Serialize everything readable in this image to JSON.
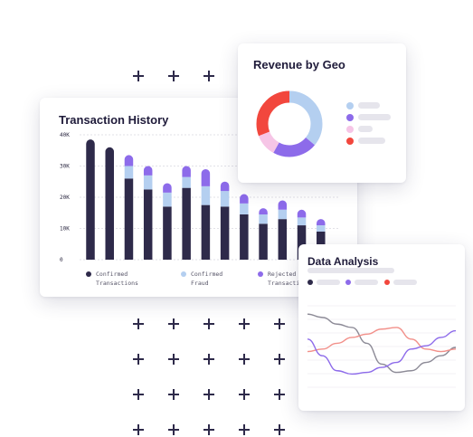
{
  "transaction_history": {
    "title": "Transaction History",
    "legend": [
      {
        "label": "Confirmed\nTransactions",
        "color": "#2e2a4a"
      },
      {
        "label": "Confirmed\nFraud",
        "color": "#b4cff0"
      },
      {
        "label": "Rejected\nTransactions",
        "color": "#8d6bea"
      }
    ],
    "chart_data": {
      "type": "bar",
      "stacked": true,
      "y_ticks": [
        "40K",
        "30K",
        "20K",
        "10K",
        "0"
      ],
      "ylim": [
        0,
        40000
      ],
      "grid": true,
      "series": [
        {
          "name": "Confirmed Transactions",
          "color": "#2e2a4a",
          "values": [
            38500,
            36000,
            26000,
            22500,
            17000,
            23000,
            17500,
            17000,
            14500,
            11500,
            13000,
            11000,
            9000
          ]
        },
        {
          "name": "Confirmed Fraud",
          "color": "#b4cff0",
          "values": [
            0,
            0,
            4000,
            4500,
            4500,
            3500,
            6000,
            5000,
            3500,
            3000,
            3000,
            2500,
            2000
          ]
        },
        {
          "name": "Rejected Transactions",
          "color": "#8d6bea",
          "values": [
            0,
            0,
            3500,
            3000,
            3000,
            3500,
            5500,
            3000,
            3000,
            2000,
            3000,
            2500,
            2000
          ]
        }
      ]
    }
  },
  "revenue_by_geo": {
    "title": "Revenue by Geo",
    "chart_data": {
      "type": "pie",
      "donut": true,
      "slices": [
        {
          "value": 36,
          "color": "#b4cff0"
        },
        {
          "value": 22,
          "color": "#8d6bea"
        },
        {
          "value": 11,
          "color": "#f6c5e6"
        },
        {
          "value": 31,
          "color": "#f2473d"
        }
      ]
    }
  },
  "data_analysis": {
    "title": "Data Analysis",
    "chart_data": {
      "type": "line",
      "grid": true,
      "x": [
        0,
        1,
        2,
        3,
        4,
        5,
        6,
        7,
        8,
        9,
        10
      ],
      "ylim": [
        0,
        100
      ],
      "series": [
        {
          "color": "#8c8a96",
          "values": [
            90,
            86,
            78,
            74,
            55,
            30,
            20,
            22,
            32,
            40,
            50
          ]
        },
        {
          "color": "#f2908a",
          "values": [
            45,
            48,
            55,
            62,
            66,
            72,
            74,
            60,
            48,
            45,
            48
          ]
        },
        {
          "color": "#8d6bea",
          "values": [
            60,
            40,
            22,
            18,
            20,
            26,
            32,
            48,
            52,
            62,
            70
          ]
        }
      ]
    }
  },
  "colors": {
    "navy": "#2e2a4a",
    "light_blue": "#b4cff0",
    "purple": "#8d6bea",
    "pink": "#f6c5e6",
    "red": "#f2473d",
    "salmon": "#f2908a",
    "grey": "#8c8a96"
  }
}
